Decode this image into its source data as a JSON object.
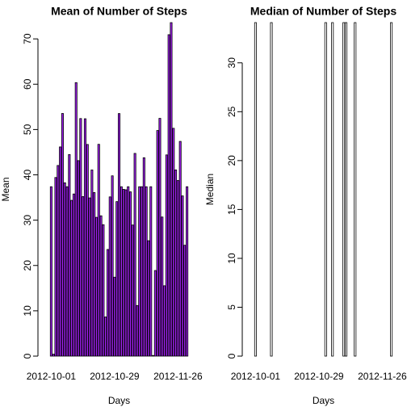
{
  "chart_data": [
    {
      "type": "bar",
      "title": "Mean of Number of Steps",
      "x_label": "Days",
      "y_label": "Mean",
      "color": "#a020f0",
      "categories": [
        "2012-10-01",
        null,
        null,
        null,
        null,
        null,
        null,
        null,
        null,
        null,
        null,
        null,
        null,
        null,
        null,
        null,
        null,
        null,
        null,
        null,
        null,
        null,
        null,
        null,
        null,
        null,
        null,
        null,
        "2012-10-29",
        null,
        null,
        null,
        null,
        null,
        null,
        null,
        null,
        null,
        null,
        null,
        null,
        null,
        null,
        null,
        null,
        null,
        null,
        null,
        null,
        null,
        null,
        null,
        null,
        null,
        null,
        null,
        "2012-11-26",
        null,
        null,
        null,
        null
      ],
      "values": [
        37.3826,
        0.4375,
        39.4167,
        42.0694,
        46.1597,
        53.5417,
        38.2465,
        37.3826,
        44.4826,
        34.375,
        35.7778,
        60.3542,
        43.1458,
        52.4236,
        35.2049,
        52.375,
        46.7083,
        34.9167,
        41.0729,
        36.0938,
        30.6285,
        46.7361,
        30.9653,
        29.0104,
        8.6528,
        23.5347,
        35.1354,
        39.7847,
        17.4236,
        34.0938,
        53.5208,
        37.3826,
        36.8056,
        36.7049,
        37.3826,
        36.2465,
        28.9375,
        44.7326,
        11.1771,
        37.3826,
        37.3826,
        43.7778,
        37.3785,
        25.4722,
        37.3826,
        0.1424,
        18.8924,
        49.7882,
        52.4653,
        30.6979,
        15.5278,
        44.3993,
        70.9271,
        73.5903,
        50.2708,
        41.0903,
        38.7569,
        47.3819,
        35.3576,
        24.4688,
        37.3826
      ],
      "ylim": [
        0,
        73.5903
      ],
      "yticks": [
        0,
        10,
        20,
        30,
        40,
        50,
        60,
        70
      ]
    },
    {
      "type": "bar",
      "title": "Median of Number of Steps",
      "x_label": "Days",
      "y_label": "Median",
      "color": "#ffffff",
      "categories": [
        "2012-10-01",
        null,
        null,
        null,
        null,
        null,
        null,
        null,
        null,
        null,
        null,
        null,
        null,
        null,
        null,
        null,
        null,
        null,
        null,
        null,
        null,
        null,
        null,
        null,
        null,
        null,
        null,
        null,
        "2012-10-29",
        null,
        null,
        null,
        null,
        null,
        null,
        null,
        null,
        null,
        null,
        null,
        null,
        null,
        null,
        null,
        null,
        null,
        null,
        null,
        null,
        null,
        null,
        null,
        null,
        null,
        null,
        null,
        "2012-11-26",
        null,
        null,
        null,
        null
      ],
      "values": [
        34.11321,
        0,
        0,
        0,
        0,
        0,
        0,
        34.11321,
        0,
        0,
        0,
        0,
        0,
        0,
        0,
        0,
        0,
        0,
        0,
        0,
        0,
        0,
        0,
        0,
        0,
        0,
        0,
        0,
        0,
        0,
        0,
        34.11321,
        0,
        0,
        34.11321,
        0,
        0,
        0,
        0,
        34.11321,
        34.11321,
        0,
        0,
        0,
        34.11321,
        0,
        0,
        0,
        0,
        0,
        0,
        0,
        0,
        0,
        0,
        0,
        0,
        0,
        0,
        0,
        34.11321
      ],
      "ylim": [
        0,
        34.11321
      ],
      "yticks": [
        0,
        5,
        10,
        15,
        20,
        25,
        30
      ]
    }
  ]
}
